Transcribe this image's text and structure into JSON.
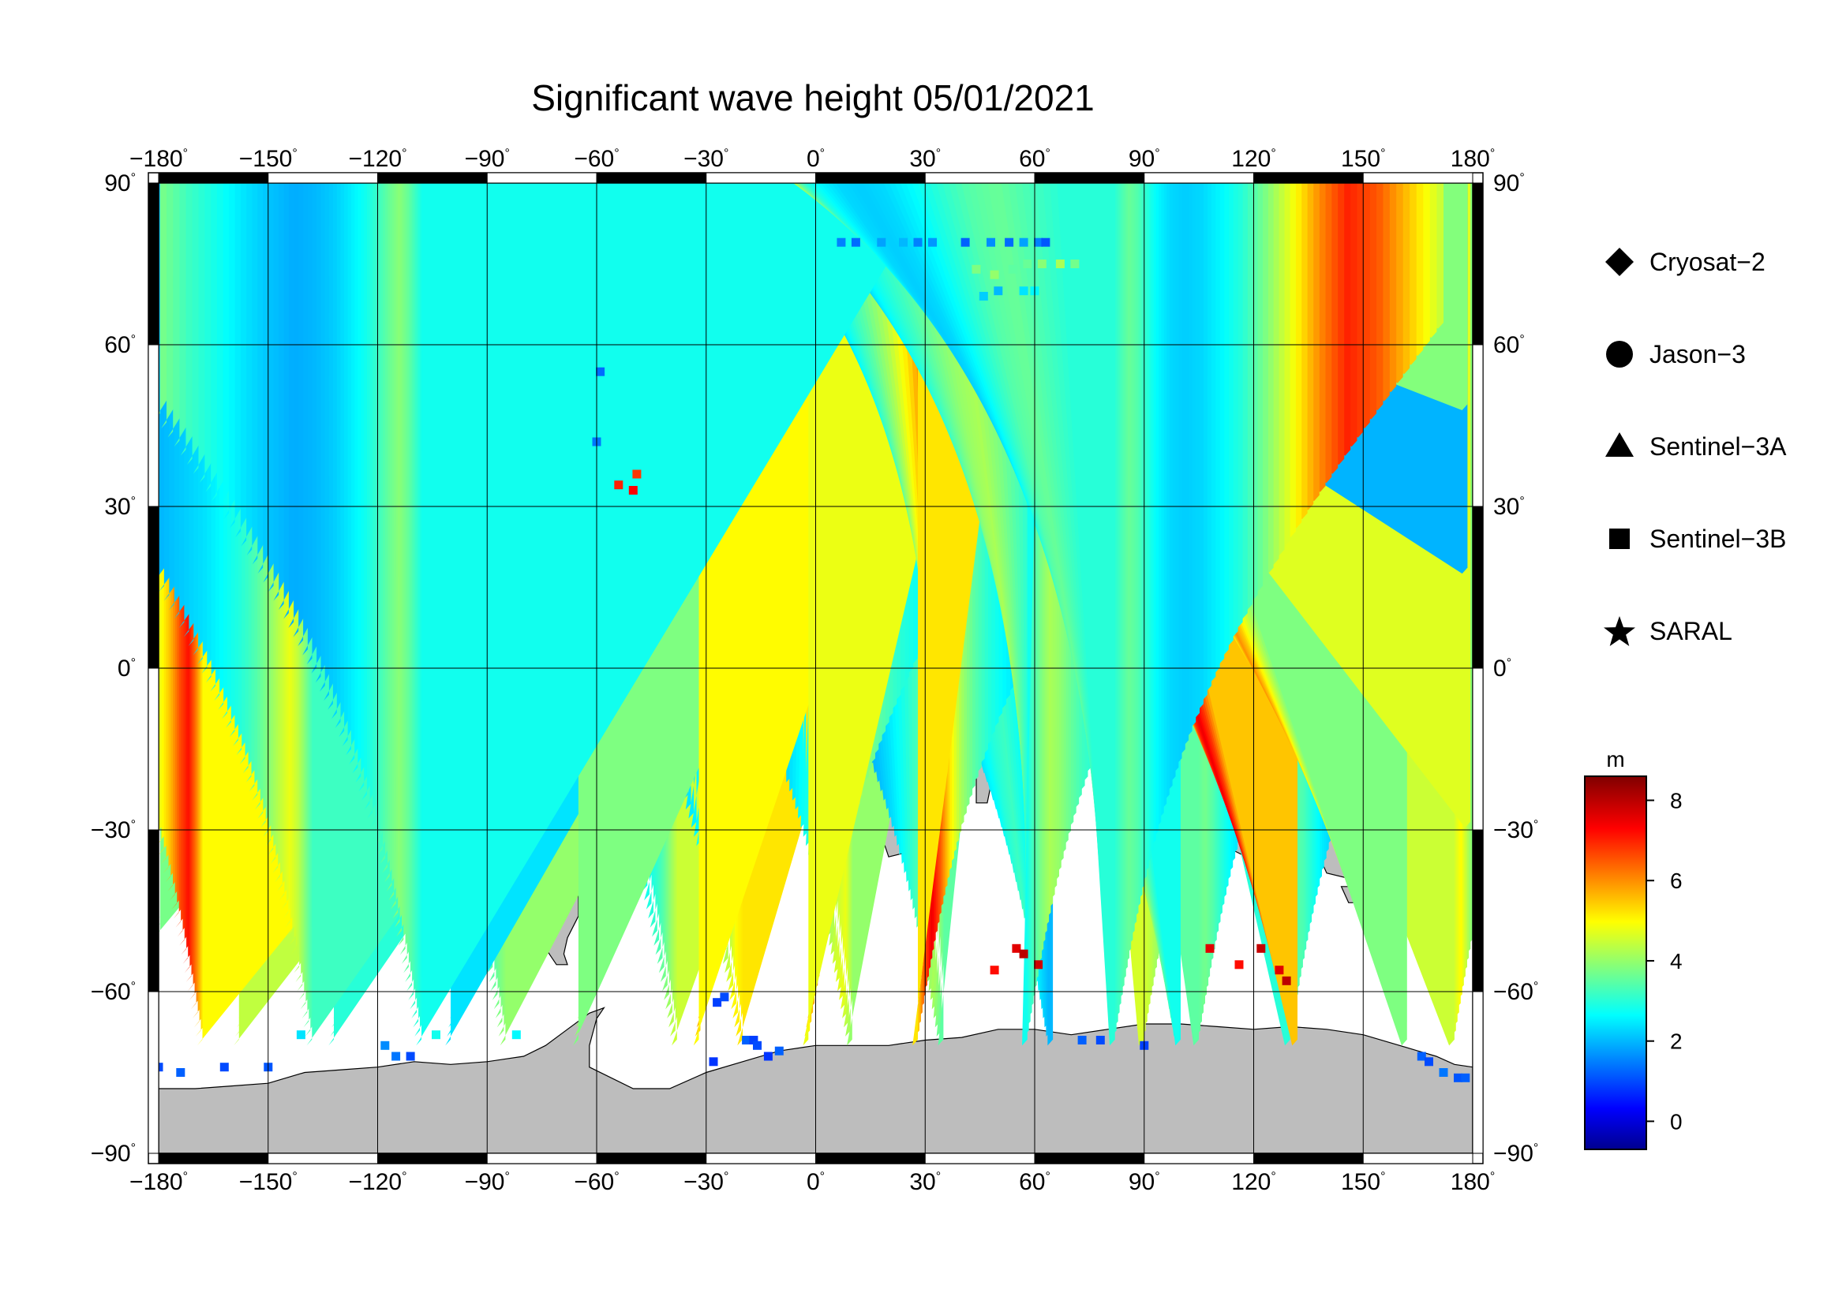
{
  "title": "Significant wave height 05/01/2021",
  "colors": {
    "land": "#bdbdbd",
    "ocean": "#ffffff",
    "frame_dark": "#000000",
    "grid": "#000000"
  },
  "axes": {
    "lon_labels": [
      "−180",
      "−150",
      "−120",
      "−90",
      "−60",
      "−30",
      "0",
      "30",
      "60",
      "90",
      "120",
      "150",
      "180"
    ],
    "lat_labels_left": [
      "90",
      "60",
      "30",
      "0",
      "−30",
      "−60",
      "−90"
    ],
    "lat_labels_right": [
      "90",
      "60",
      "30",
      "0",
      "−30",
      "−60",
      "−90"
    ],
    "degree_symbol": "°",
    "lon_range": [
      -180,
      180
    ],
    "lat_range": [
      -90,
      90
    ],
    "grid_step": 30,
    "grid": true
  },
  "legend": {
    "items": [
      {
        "label": "Cryosat−2",
        "icon": "diamond-icon"
      },
      {
        "label": "Jason−3",
        "icon": "circle-icon"
      },
      {
        "label": "Sentinel−3A",
        "icon": "triangle-icon"
      },
      {
        "label": "Sentinel−3B",
        "icon": "square-icon"
      },
      {
        "label": "SARAL",
        "icon": "star-icon"
      }
    ]
  },
  "colorbar": {
    "unit": "m",
    "ticks": [
      "8",
      "6",
      "4",
      "2",
      "0"
    ],
    "range": [
      -0.7,
      8.6
    ],
    "colormap": "jet"
  },
  "chart_data": {
    "type": "scatter",
    "title": "Significant wave height 05/01/2021",
    "xlabel": "",
    "ylabel": "",
    "xlim": [
      -180,
      180
    ],
    "ylim": [
      -90,
      90
    ],
    "value_unit": "m",
    "series": [
      {
        "name": "Sentinel−3A",
        "marker": "triangle",
        "tracks": [
          {
            "lon0": -180,
            "dir": -1,
            "h": [
              3.5,
              3.3,
              3.0,
              2.8,
              2.6,
              2.4,
              2.2,
              2.0,
              2.2,
              2.4,
              2.6,
              2.8,
              3.0,
              3.3,
              3.6,
              4.0,
              4.4,
              4.6
            ]
          },
          {
            "lon0": -175,
            "dir": 1,
            "h": [
              5.5,
              5.2,
              4.8,
              4.4,
              4.0,
              3.6,
              3.2,
              2.9,
              2.6,
              2.4,
              2.2,
              2.1,
              2.2,
              2.5,
              2.9,
              3.3,
              3.7,
              4.0
            ]
          },
          {
            "lon0": -165,
            "dir": -1,
            "h": [
              5.8,
              6.0,
              6.2,
              5.8,
              5.0,
              4.2,
              3.6,
              3.0,
              2.6,
              2.3,
              2.2,
              2.1,
              2.3,
              2.6,
              3.0,
              3.4,
              3.7,
              3.5
            ]
          },
          {
            "lon0": -140,
            "dir": -1,
            "h": [
              5.0,
              6.5,
              7.5,
              7.0,
              5.8,
              4.5,
              3.6,
              3.0,
              2.6,
              2.3,
              2.1,
              2.0,
              2.2,
              2.5,
              2.9,
              3.3,
              3.5,
              3.0
            ]
          },
          {
            "lon0": -128,
            "dir": 1,
            "h": [
              5.5,
              5.8,
              5.6,
              5.0,
              4.3,
              3.6,
              3.0,
              2.6,
              2.3,
              2.1,
              2.0,
              2.1,
              2.3,
              2.6,
              3.0,
              3.4,
              4.0,
              4.5
            ]
          },
          {
            "lon0": -110,
            "dir": 1,
            "h": [
              2.8,
              2.6,
              2.4,
              2.2,
              2.0,
              1.8,
              1.6,
              1.5,
              1.6,
              1.8,
              2.0,
              2.3,
              2.6,
              3.0,
              3.5,
              4.2,
              5.0,
              5.2
            ]
          },
          {
            "lon0": -95,
            "dir": -1,
            "h": [
              1.0,
              1.2,
              1.4,
              1.6,
              1.8,
              1.8,
              1.6,
              1.5,
              1.6,
              1.8,
              2.0,
              2.2,
              2.5,
              2.9,
              3.4,
              4.2,
              5.0,
              4.5
            ]
          },
          {
            "lon0": -80,
            "dir": 1,
            "h": [
              1.2,
              1.4,
              1.6,
              1.8,
              2.0,
              1.8,
              1.6,
              1.5,
              1.7,
              1.9,
              2.1,
              2.4,
              2.8,
              3.3,
              3.9,
              4.5,
              4.8,
              4.0
            ]
          },
          {
            "lon0": -68,
            "dir": -1,
            "h": [
              1.8,
              1.6,
              1.5,
              1.6,
              1.8,
              2.0,
              1.9,
              1.7,
              1.6,
              1.8,
              2.0,
              2.3,
              2.7,
              3.2,
              3.8,
              4.5,
              5.0,
              4.4
            ]
          },
          {
            "lon0": -55,
            "dir": 1,
            "h": [
              1.5,
              1.6,
              1.8,
              2.0,
              2.2,
              2.4,
              2.4,
              2.2,
              2.0,
              1.8,
              1.9,
              2.1,
              2.4,
              2.8,
              3.3,
              3.8,
              4.2,
              3.5
            ]
          },
          {
            "lon0": -42,
            "dir": -1,
            "h": [
              1.4,
              1.6,
              1.9,
              2.2,
              2.5,
              2.5,
              2.3,
              2.1,
              2.0,
              2.1,
              2.3,
              2.5,
              2.8,
              3.2,
              3.6,
              4.0,
              3.6,
              3.0
            ]
          },
          {
            "lon0": -25,
            "dir": 1,
            "h": [
              1.4,
              1.6,
              1.8,
              2.0,
              2.2,
              2.0,
              1.9,
              1.8,
              1.9,
              2.1,
              2.3,
              2.5,
              2.7,
              3.0,
              3.2,
              2.8,
              2.4,
              2.0
            ]
          },
          {
            "lon0": -10,
            "dir": -1,
            "h": [
              1.5,
              1.7,
              1.9,
              2.1,
              2.0,
              1.9,
              1.8,
              1.8,
              1.9,
              2.1,
              2.3,
              2.5,
              2.8,
              3.1,
              3.4,
              3.2,
              2.8,
              2.4
            ]
          },
          {
            "lon0": 10,
            "dir": 1,
            "h": [
              2.0,
              2.2,
              2.4,
              2.2,
              2.0,
              1.8,
              1.7,
              1.7,
              1.8,
              2.0,
              2.2,
              2.5,
              2.8,
              3.2,
              3.6,
              4.0,
              3.4,
              2.8
            ]
          },
          {
            "lon0": 25,
            "dir": -1,
            "h": [
              1.6,
              1.8,
              2.0,
              2.2,
              2.4,
              2.3,
              2.2,
              2.1,
              2.3,
              2.5,
              2.8,
              3.1,
              3.5,
              4.0,
              4.6,
              5.0,
              4.5,
              3.8
            ]
          },
          {
            "lon0": 42,
            "dir": 1,
            "h": [
              1.0,
              1.2,
              1.4,
              1.6,
              1.8,
              2.0,
              2.2,
              2.4,
              2.6,
              2.9,
              3.3,
              3.8,
              4.5,
              5.5,
              6.8,
              7.5,
              6.8,
              5.5
            ]
          },
          {
            "lon0": 58,
            "dir": -1,
            "h": [
              1.2,
              1.4,
              1.6,
              1.8,
              2.0,
              2.2,
              2.4,
              2.6,
              2.8,
              3.1,
              3.5,
              4.0,
              4.8,
              5.8,
              7.0,
              7.6,
              6.5,
              5.0
            ]
          },
          {
            "lon0": 72,
            "dir": 1,
            "h": [
              1.6,
              1.7,
              1.9,
              2.1,
              2.3,
              2.5,
              2.7,
              2.9,
              3.1,
              3.3,
              3.6,
              4.0,
              4.6,
              5.3,
              6.0,
              5.5,
              4.6,
              3.8
            ]
          },
          {
            "lon0": 88,
            "dir": -1,
            "h": [
              1.2,
              1.3,
              1.5,
              1.7,
              1.9,
              2.1,
              2.3,
              2.5,
              2.8,
              3.1,
              3.5,
              4.0,
              4.7,
              5.5,
              6.5,
              7.0,
              6.0,
              4.8
            ]
          },
          {
            "lon0": 102,
            "dir": 1,
            "h": [
              1.4,
              1.5,
              1.6,
              1.8,
              2.0,
              2.2,
              2.4,
              2.6,
              2.9,
              3.2,
              3.6,
              4.1,
              4.8,
              5.6,
              6.6,
              7.2,
              6.2,
              5.0
            ]
          },
          {
            "lon0": 118,
            "dir": -1,
            "h": [
              2.2,
              2.0,
              1.8,
              1.6,
              1.5,
              1.6,
              1.8,
              2.0,
              2.3,
              2.6,
              3.0,
              3.5,
              4.2,
              5.2,
              6.5,
              7.5,
              6.5,
              5.2
            ]
          },
          {
            "lon0": 132,
            "dir": 1,
            "h": [
              2.4,
              2.2,
              2.0,
              1.8,
              1.7,
              1.8,
              2.0,
              2.2,
              2.4,
              2.7,
              3.0,
              3.4,
              3.9,
              4.4,
              4.8,
              4.4,
              3.8,
              3.2
            ]
          },
          {
            "lon0": 148,
            "dir": -1,
            "h": [
              2.6,
              2.4,
              2.2,
              2.0,
              1.9,
              1.8,
              1.9,
              2.1,
              2.3,
              2.6,
              2.9,
              3.2,
              3.6,
              4.0,
              4.2,
              3.8,
              3.3,
              2.8
            ]
          },
          {
            "lon0": 162,
            "dir": 1,
            "h": [
              5.0,
              4.4,
              3.8,
              3.2,
              2.8,
              2.4,
              2.1,
              1.9,
              2.0,
              2.2,
              2.5,
              2.8,
              3.2,
              3.6,
              3.9,
              3.6,
              3.2,
              2.8
            ]
          },
          {
            "lon0": 172,
            "dir": -1,
            "h": [
              4.5,
              5.5,
              6.5,
              7.0,
              6.0,
              4.8,
              3.8,
              3.0,
              2.6,
              2.3,
              2.2,
              2.3,
              2.6,
              3.0,
              3.4,
              3.6,
              3.3,
              3.0
            ]
          }
        ]
      },
      {
        "name": "Sentinel−3B",
        "marker": "square",
        "points": [
          [
            -180,
            -74,
            1.0
          ],
          [
            -174,
            -75,
            1.2
          ],
          [
            -162,
            -74,
            1.0
          ],
          [
            -150,
            -74,
            1.1
          ],
          [
            -115,
            -72,
            1.4
          ],
          [
            -111,
            -72,
            1.0
          ],
          [
            -118,
            -70,
            1.6
          ],
          [
            -28,
            -73,
            0.8
          ],
          [
            -27,
            -62,
            0.9
          ],
          [
            -25,
            -61,
            1.0
          ],
          [
            -19,
            -69,
            1.2
          ],
          [
            -17,
            -69,
            0.9
          ],
          [
            -16,
            -70,
            1.0
          ],
          [
            -13,
            -72,
            0.8
          ],
          [
            -10,
            -71,
            1.2
          ],
          [
            -54,
            34,
            7.0
          ],
          [
            -50,
            33,
            7.3
          ],
          [
            -49,
            36,
            6.8
          ],
          [
            -60,
            42,
            1.4
          ],
          [
            -59,
            55,
            1.3
          ],
          [
            7,
            79,
            1.5
          ],
          [
            11,
            79,
            1.3
          ],
          [
            18,
            79,
            1.8
          ],
          [
            24,
            79,
            2.0
          ],
          [
            28,
            79,
            1.5
          ],
          [
            32,
            79,
            1.7
          ],
          [
            41,
            79,
            1.2
          ],
          [
            48,
            79,
            1.6
          ],
          [
            53,
            79,
            1.3
          ],
          [
            57,
            79,
            1.8
          ],
          [
            61,
            79,
            1.5
          ],
          [
            63,
            79,
            1.1
          ],
          [
            44,
            74,
            3.8
          ],
          [
            49,
            73,
            4.0
          ],
          [
            54,
            74,
            3.5
          ],
          [
            58,
            75,
            3.6
          ],
          [
            62,
            75,
            3.9
          ],
          [
            67,
            75,
            4.2
          ],
          [
            71,
            75,
            3.7
          ],
          [
            46,
            69,
            2.2
          ],
          [
            50,
            70,
            2.0
          ],
          [
            57,
            70,
            2.4
          ],
          [
            60,
            70,
            2.6
          ],
          [
            49,
            -56,
            7.2
          ],
          [
            55,
            -52,
            7.6
          ],
          [
            57,
            -53,
            8.0
          ],
          [
            61,
            -55,
            7.8
          ],
          [
            73,
            -69,
            1.2
          ],
          [
            78,
            -69,
            1.0
          ],
          [
            90,
            -70,
            0.9
          ],
          [
            108,
            -52,
            7.6
          ],
          [
            116,
            -55,
            7.2
          ],
          [
            122,
            -52,
            7.9
          ],
          [
            127,
            -56,
            7.6
          ],
          [
            129,
            -58,
            8.0
          ],
          [
            -82,
            -68,
            2.6
          ],
          [
            -104,
            -68,
            2.8
          ],
          [
            -141,
            -68,
            2.4
          ],
          [
            166,
            -72,
            1.2
          ],
          [
            168,
            -73,
            1.0
          ],
          [
            172,
            -75,
            1.4
          ],
          [
            176,
            -76,
            1.1
          ],
          [
            178,
            -76,
            1.2
          ]
        ]
      }
    ]
  }
}
